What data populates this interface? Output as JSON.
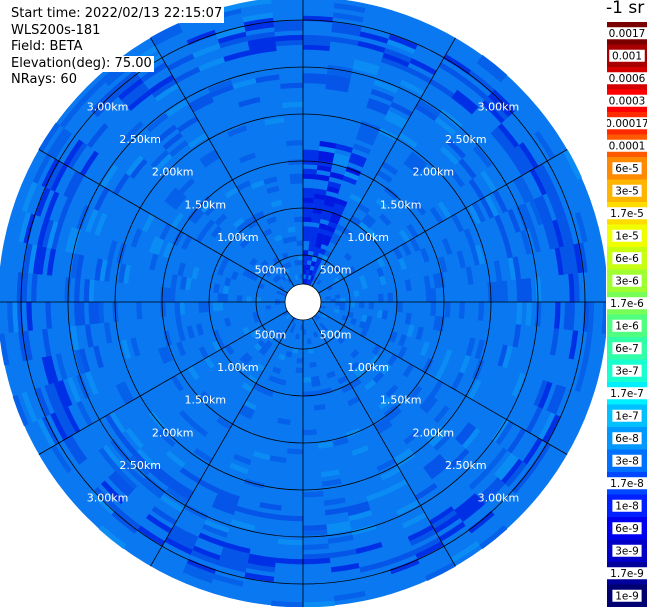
{
  "info": {
    "start_time": "Start time: 2022/02/13 22:15:07",
    "instrument": "WLS200s-181",
    "field": "Field: BETA",
    "elevation": "Elevation(deg): 75.00",
    "nrays": "NRays: 60"
  },
  "colorbar": {
    "title": "-1 sr",
    "labels": [
      "0.0017",
      "0.001",
      "0.0006",
      "0.0003",
      "0.00017",
      "0.0001",
      "6e-5",
      "3e-5",
      "1.7e-5",
      "1e-5",
      "6e-6",
      "3e-6",
      "1.7e-6",
      "1e-6",
      "6e-7",
      "3e-7",
      "1.7e-7",
      "1e-7",
      "6e-8",
      "3e-8",
      "1.7e-8",
      "1e-8",
      "6e-9",
      "3e-9",
      "1.7e-9",
      "1e-9"
    ],
    "colors": [
      "#7a0000",
      "#a80000",
      "#d40000",
      "#ff0000",
      "#ff2a00",
      "#ff5a00",
      "#ff8a00",
      "#ffb400",
      "#ffdc00",
      "#f0ff00",
      "#c8ff10",
      "#a0ff30",
      "#78ff58",
      "#50ff80",
      "#30ffa8",
      "#18ffd0",
      "#00f0ff",
      "#00c0ff",
      "#0098ff",
      "#0070ff",
      "#0048ff",
      "#0020ff",
      "#0000f0",
      "#0000c8",
      "#00009a",
      "#000072"
    ]
  },
  "range_rings": {
    "labels": [
      "500m",
      "1.00km",
      "1.50km",
      "2.00km",
      "2.50km",
      "3.00km"
    ]
  }
}
